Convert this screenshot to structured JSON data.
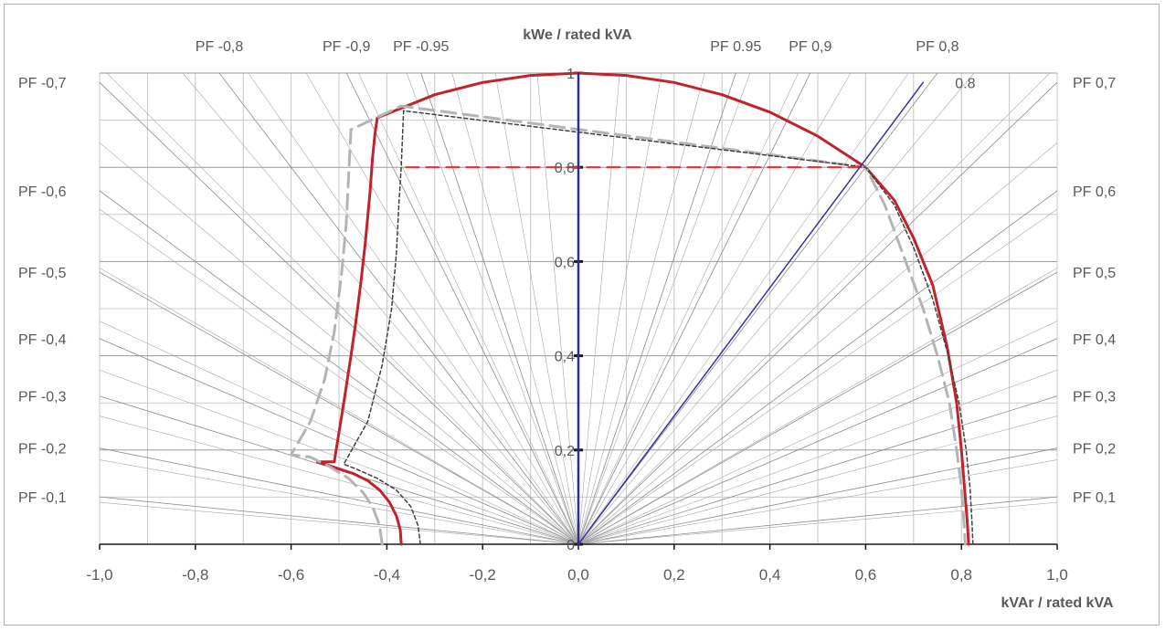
{
  "chart_data": {
    "type": "line",
    "title": "",
    "ylabel": "kWe / rated kVA",
    "xlabel": "kVAr / rated kVA",
    "xlim": [
      -1.0,
      1.0
    ],
    "ylim": [
      0,
      1
    ],
    "x_ticks": [
      "-1,0",
      "-0,8",
      "-0,6",
      "-0,4",
      "-0,2",
      "0,0",
      "0,2",
      "0,4",
      "0,6",
      "0,8",
      "1,0"
    ],
    "x_tick_values": [
      -1.0,
      -0.8,
      -0.6,
      -0.4,
      -0.2,
      0.0,
      0.2,
      0.4,
      0.6,
      0.8,
      1.0
    ],
    "y_ticks": [
      "0",
      "0,2",
      "0,4",
      "0,6",
      "0,8",
      "1"
    ],
    "y_tick_values": [
      0,
      0.2,
      0.4,
      0.6,
      0.8,
      1.0
    ],
    "grid": true,
    "pf_labels_left": [
      {
        "text": "PF -0,7",
        "pf": 0.7
      },
      {
        "text": "PF -0,6",
        "pf": 0.6
      },
      {
        "text": "PF -0,5",
        "pf": 0.5
      },
      {
        "text": "PF -0,4",
        "pf": 0.4
      },
      {
        "text": "PF -0,3",
        "pf": 0.3
      },
      {
        "text": "PF -0,2",
        "pf": 0.2
      },
      {
        "text": "PF -0,1",
        "pf": 0.1
      }
    ],
    "pf_labels_right": [
      {
        "text": "PF 0,7",
        "pf": 0.7
      },
      {
        "text": "PF 0,6",
        "pf": 0.6
      },
      {
        "text": "PF 0,5",
        "pf": 0.5
      },
      {
        "text": "PF 0,4",
        "pf": 0.4
      },
      {
        "text": "PF 0,3",
        "pf": 0.3
      },
      {
        "text": "PF 0,2",
        "pf": 0.2
      },
      {
        "text": "PF 0,1",
        "pf": 0.1
      }
    ],
    "pf_labels_top": [
      {
        "text": "PF -0,8",
        "pf": -0.8
      },
      {
        "text": "PF -0,9",
        "pf": -0.9
      },
      {
        "text": "PF -0.95",
        "pf": -0.95
      },
      {
        "text": "PF 0.95",
        "pf": 0.95
      },
      {
        "text": "PF 0,9",
        "pf": 0.9
      },
      {
        "text": "PF 0,8",
        "pf": 0.8
      }
    ],
    "annotation": {
      "text": "0.8",
      "x": 0.76,
      "y": 0.98
    },
    "series": [
      {
        "style": "capability-solid",
        "color": "#c0232b",
        "x": [
          -0.37,
          -0.372,
          -0.38,
          -0.395,
          -0.415,
          -0.44,
          -0.47,
          -0.5,
          -0.545,
          -0.51,
          -0.49,
          -0.475,
          -0.465,
          -0.455,
          -0.445,
          -0.435,
          -0.43,
          -0.425,
          -0.42,
          -0.3,
          -0.2,
          -0.1,
          0.0,
          0.1,
          0.2,
          0.3,
          0.4,
          0.5,
          0.6,
          0.66,
          0.7,
          0.74,
          0.77,
          0.79,
          0.8,
          0.808,
          0.812,
          0.814,
          0.815
        ],
        "y": [
          0,
          0.03,
          0.06,
          0.09,
          0.115,
          0.135,
          0.15,
          0.16,
          0.175,
          0.175,
          0.3,
          0.4,
          0.47,
          0.55,
          0.64,
          0.75,
          0.82,
          0.87,
          0.905,
          0.954,
          0.98,
          0.995,
          1.0,
          0.995,
          0.98,
          0.954,
          0.917,
          0.866,
          0.8,
          0.73,
          0.65,
          0.55,
          0.42,
          0.3,
          0.2,
          0.1,
          0.05,
          0.02,
          0
        ]
      },
      {
        "style": "light-grey-dashed",
        "color": "#b4b4b4",
        "x": [
          -0.41,
          -0.415,
          -0.43,
          -0.45,
          -0.48,
          -0.52,
          -0.56,
          -0.6,
          -0.56,
          -0.53,
          -0.51,
          -0.495,
          -0.485,
          -0.48,
          -0.475,
          -0.37,
          0.6,
          0.64,
          0.68,
          0.72,
          0.75,
          0.775,
          0.79,
          0.8,
          0.805,
          0.808
        ],
        "y": [
          0,
          0.04,
          0.08,
          0.11,
          0.14,
          0.165,
          0.185,
          0.19,
          0.26,
          0.35,
          0.45,
          0.57,
          0.68,
          0.78,
          0.88,
          0.93,
          0.8,
          0.72,
          0.61,
          0.5,
          0.4,
          0.3,
          0.2,
          0.12,
          0.05,
          0
        ]
      },
      {
        "style": "dark-dotted",
        "color": "#404040",
        "x": [
          -0.33,
          -0.335,
          -0.35,
          -0.38,
          -0.42,
          -0.465,
          -0.49,
          -0.44,
          -0.41,
          -0.39,
          -0.38,
          -0.375,
          -0.37,
          -0.365,
          0.6,
          0.66,
          0.7,
          0.74,
          0.77,
          0.795,
          0.81,
          0.818,
          0.822,
          0.824
        ],
        "y": [
          0,
          0.04,
          0.08,
          0.115,
          0.14,
          0.16,
          0.17,
          0.26,
          0.38,
          0.5,
          0.62,
          0.72,
          0.8,
          0.92,
          0.8,
          0.72,
          0.63,
          0.52,
          0.41,
          0.3,
          0.2,
          0.12,
          0.05,
          0
        ]
      },
      {
        "style": "red-dashed-level",
        "color": "#e03030",
        "x": [
          -0.36,
          0.6
        ],
        "y": [
          0.8,
          0.8
        ]
      },
      {
        "style": "blue-pf-line",
        "color": "#33339e",
        "x": [
          0.0,
          0.72
        ],
        "y": [
          0.0,
          0.98
        ]
      },
      {
        "style": "blue-vertical",
        "color": "#2e2e8c",
        "x": [
          0.0,
          0.0
        ],
        "y": [
          0.0,
          1.0
        ]
      }
    ]
  }
}
